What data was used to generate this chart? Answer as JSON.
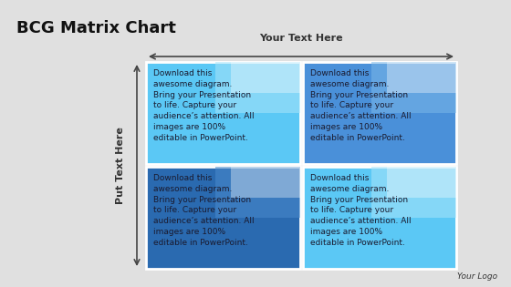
{
  "title": "BCG Matrix Chart",
  "top_label": "Your Text Here",
  "left_label": "Put Text Here",
  "logo_text": "Your Logo",
  "cell_text_lines": [
    "Download this",
    "awesome diagram.",
    "Bring your Presentation",
    "to life. Capture your",
    "audience’s attention. All",
    "images are 100%",
    "editable in PowerPoint."
  ],
  "background_color": "#e0e0e0",
  "cell_colors": {
    "tl": "#5bc8f5",
    "tr": "#4a90d9",
    "bl": "#2a6ab0",
    "br": "#5bc8f5"
  },
  "cell_highlight_colors": {
    "tl": "#a8e4fa",
    "tr": "#7ab8e8",
    "bl": "#4a8acc",
    "br": "#a8e4fa"
  },
  "title_fontsize": 13,
  "cell_fontsize": 6.5,
  "axis_label_fontsize": 8,
  "logo_fontsize": 6.5,
  "cell_text_color": "#1a1a2e",
  "title_color": "#111111",
  "axis_label_color": "#333333",
  "fig_width": 5.6,
  "fig_height": 3.15,
  "dpi": 100
}
